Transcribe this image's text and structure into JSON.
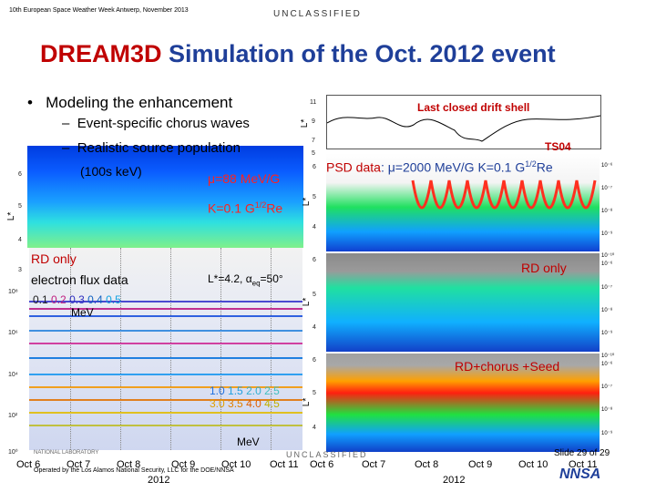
{
  "header": {
    "conference": "10th European Space Weather Week Antwerp, November 2013",
    "classification": "UNCLASSIFIED"
  },
  "title": {
    "part1": "DREAM3D",
    "part2": "Simulation of the Oct. 2012 event"
  },
  "bullets": {
    "main": "Modeling the enhancement",
    "sub1": "Event-specific chorus waves",
    "sub2": "Realistic source population",
    "sub2b": "(100s keV)",
    "bullet_char": "•",
    "dash_char": "–"
  },
  "left_panel": {
    "mu_label": "μ=88 MeV/G",
    "k_label": "K=0.1 G",
    "k_exp": "1/2",
    "k_unit": "Re",
    "ylabel": "L*",
    "yticks": [
      "6",
      "5",
      "4",
      "3"
    ]
  },
  "flux_panel": {
    "rd_only": "RD only",
    "title": "electron flux data",
    "lstar": "L*=4.2, α",
    "lstar_sub": "eq",
    "lstar_end": "=50°",
    "energy_top": [
      "0.1",
      "0.2",
      "0.3",
      "0.4",
      "0.5"
    ],
    "energy_top_unit": "MeV",
    "energy_bot_row1": [
      "1.0",
      "1.5",
      "2.0",
      "2.5"
    ],
    "energy_bot_row2": [
      "3.0",
      "3.5",
      "4.0",
      "4.5"
    ],
    "energy_bot_unit": "MeV",
    "yticks": [
      "10⁸",
      "10⁶",
      "10⁴",
      "10²",
      "10⁰"
    ],
    "xticks": [
      "Oct 6",
      "Oct 7",
      "Oct 8",
      "Oct 9",
      "Oct 10",
      "Oct 11"
    ],
    "year": "2012"
  },
  "right_panels": {
    "lcds_title": "Last closed drift shell",
    "lcds_ylabel": "L*",
    "lcds_yticks": [
      "11",
      "9",
      "7",
      "5"
    ],
    "ts04": "TS04",
    "psd_label": "PSD data",
    "psd_detail": ": μ=2000 MeV/G K=0.1 G",
    "psd_exp": "1/2",
    "psd_unit": "Re",
    "rd_only": "RD only",
    "rd_chorus": "RD+chorus +Seed",
    "panel_yticks": [
      "6",
      "5",
      "4",
      "3"
    ],
    "ylabel": "L*",
    "colorbar": [
      "10⁻⁶",
      "10⁻⁷",
      "10⁻⁸",
      "10⁻⁹",
      "10⁻¹⁰"
    ],
    "xticks": [
      "Oct 6",
      "Oct 7",
      "Oct 8",
      "Oct 9",
      "Oct 10",
      "Oct 11"
    ],
    "year": "2012"
  },
  "footer": {
    "operator": "Operated by the Los Alamos National Security, LLC for the DOE/NNSA",
    "lab": "NATIONAL LABORATORY",
    "classification": "UNCLASSIFIED",
    "slide": "Slide 29 of 29",
    "logo": "NNSA"
  }
}
